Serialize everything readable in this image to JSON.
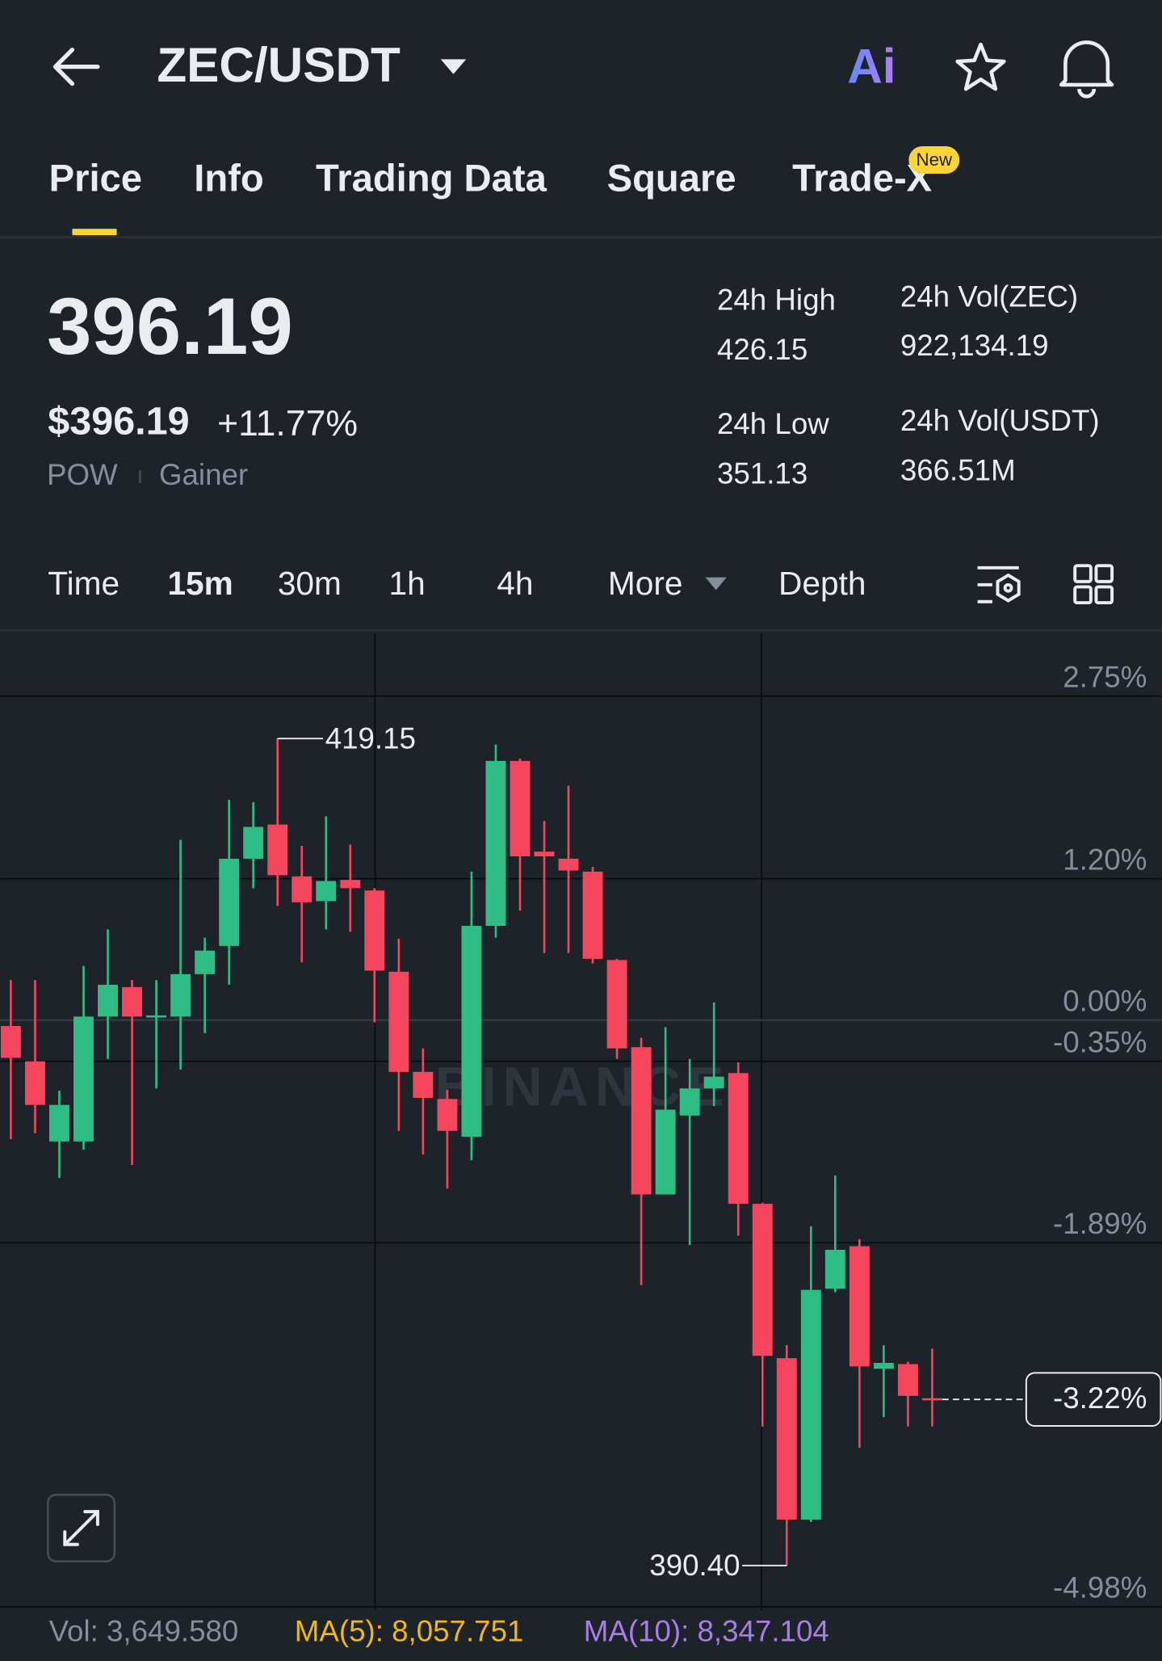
{
  "header": {
    "pair": "ZEC/USDT",
    "ai": "Ai"
  },
  "tabs": [
    "Price",
    "Info",
    "Trading Data",
    "Square",
    "Trade-X"
  ],
  "new_badge": "New",
  "ticker": {
    "price": "396.19",
    "usd_price": "$396.19",
    "change": "+11.77%",
    "tags": [
      "POW",
      "Gainer"
    ],
    "stats": [
      {
        "label": "24h High",
        "value": "426.15"
      },
      {
        "label": "24h Vol(ZEC)",
        "value": "922,134.19"
      },
      {
        "label": "24h Low",
        "value": "351.13"
      },
      {
        "label": "24h Vol(USDT)",
        "value": "366.51M"
      }
    ]
  },
  "intervals": [
    "Time",
    "15m",
    "30m",
    "1h",
    "4h",
    "More",
    "Depth"
  ],
  "chart_data": {
    "type": "candlestick",
    "open": [
      -0.05,
      -0.35,
      -1.03,
      -1.03,
      0.03,
      0.28,
      0.03,
      0.03,
      0.39,
      0.63,
      1.37,
      1.66,
      1.22,
      1.01,
      1.19,
      1.1,
      0.41,
      -0.44,
      -0.67,
      -0.99,
      0.8,
      2.2,
      1.43,
      1.37,
      1.26,
      0.51,
      -0.23,
      -1.48,
      -0.81,
      -0.58,
      -0.45,
      -1.56,
      -2.87,
      -4.24,
      -2.28,
      -1.92,
      -2.96,
      -2.92,
      -3.21
    ],
    "high": [
      0.34,
      0.34,
      -0.6,
      0.46,
      0.77,
      0.34,
      0.34,
      1.53,
      0.7,
      1.87,
      1.85,
      2.39,
      1.48,
      1.73,
      1.49,
      1.12,
      0.69,
      -0.24,
      -0.59,
      1.26,
      2.34,
      2.22,
      1.69,
      1.99,
      1.3,
      0.52,
      -0.15,
      -0.06,
      -0.33,
      0.15,
      -0.36,
      -1.55,
      -2.76,
      -1.75,
      -1.32,
      -1.86,
      -2.76,
      -2.9,
      -2.79
    ],
    "low": [
      -1.01,
      -0.96,
      -1.34,
      -1.1,
      -0.33,
      -1.23,
      -0.58,
      -0.42,
      -0.11,
      0.3,
      1.12,
      0.97,
      0.49,
      0.77,
      0.75,
      -0.02,
      -0.94,
      -1.14,
      -1.43,
      -1.19,
      0.7,
      0.93,
      0.57,
      0.57,
      0.48,
      -0.33,
      -2.25,
      -1.48,
      -1.91,
      -0.73,
      -1.83,
      -3.45,
      -4.63,
      -4.26,
      -2.31,
      -3.63,
      -3.37,
      -3.45,
      -3.45
    ],
    "close": [
      -0.32,
      -0.72,
      -0.72,
      0.03,
      0.3,
      0.03,
      0.04,
      0.39,
      0.59,
      1.37,
      1.64,
      1.23,
      1.0,
      1.18,
      1.12,
      0.42,
      -0.44,
      -0.66,
      -0.94,
      0.8,
      2.2,
      1.39,
      1.39,
      1.27,
      0.52,
      -0.24,
      -1.48,
      -0.76,
      -0.58,
      -0.48,
      -1.56,
      -2.85,
      -4.24,
      -2.29,
      -1.95,
      -2.94,
      -2.91,
      -3.19,
      -3.22
    ],
    "up_color": "#2ebd85",
    "down_color": "#f6465d",
    "ylim": [
      -5.0,
      3.3
    ],
    "yticks": [
      {
        "value": 2.75,
        "label": "2.75%"
      },
      {
        "value": 1.2,
        "label": "1.20%"
      },
      {
        "value": 0,
        "label": "0.00%"
      },
      {
        "value": -0.35,
        "label": "-0.35%"
      },
      {
        "value": -1.89,
        "label": "-1.89%"
      },
      {
        "value": -4.98,
        "label": "-4.98%"
      }
    ],
    "grid": true,
    "last_price": {
      "value": -3.22,
      "label": "-3.22%"
    },
    "high_label": "419.15",
    "low_label": "390.40"
  },
  "indicators": {
    "vol": "Vol: 3,649.580",
    "ma5": "MA(5): 8,057.751",
    "ma10": "MA(10): 8,347.104"
  },
  "watermark": "BINANCE"
}
